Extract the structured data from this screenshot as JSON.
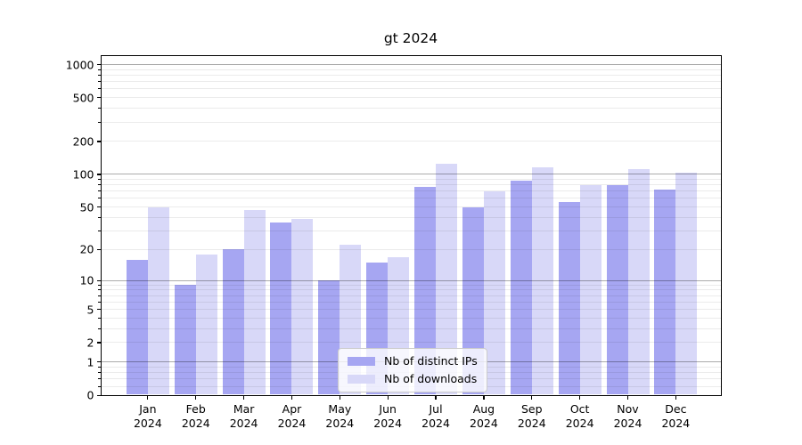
{
  "chart_data": {
    "type": "bar",
    "title": "gt 2024",
    "categories": [
      "Jan 2024",
      "Feb 2024",
      "Mar 2024",
      "Apr 2024",
      "May 2024",
      "Jun 2024",
      "Jul 2024",
      "Aug 2024",
      "Sep 2024",
      "Oct 2024",
      "Nov 2024",
      "Dec 2024"
    ],
    "series": [
      {
        "name": "Nb of distinct IPs",
        "color": "#a6a6f2",
        "values": [
          16,
          9,
          20,
          36,
          10,
          15,
          76,
          50,
          88,
          56,
          80,
          73
        ]
      },
      {
        "name": "Nb of downloads",
        "color": "#d8d8f8",
        "values": [
          50,
          18,
          47,
          39,
          22,
          17,
          125,
          70,
          117,
          80,
          112,
          103
        ]
      }
    ],
    "yscale": "log10(1+x)",
    "yticks": [
      0,
      1,
      2,
      5,
      10,
      20,
      50,
      100,
      200,
      500,
      1000
    ],
    "ylim": [
      0,
      1200
    ],
    "xlabel": "",
    "ylabel": "",
    "grid": "major and minor horizontal gridlines",
    "legend_position": "lower center inside plot"
  }
}
